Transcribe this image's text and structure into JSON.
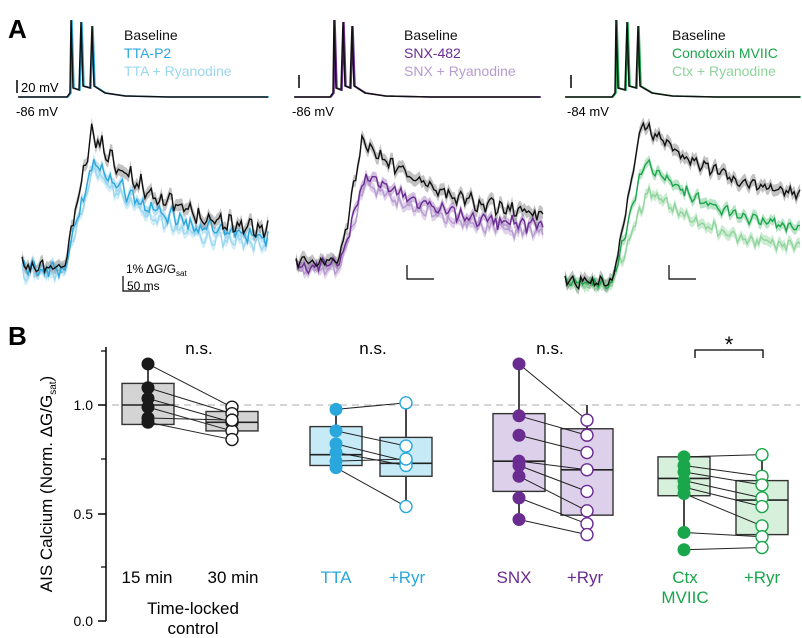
{
  "chart_data": [
    {
      "type": "line",
      "panel": "A",
      "panel_label": "A",
      "legend": [
        {
          "label": "Baseline",
          "color": "#111111"
        },
        {
          "label": "TTA-P2",
          "color": "#2aa7dd"
        },
        {
          "label": "TTA + Ryanodine",
          "color": "#9bd7f0"
        }
      ],
      "vm_label": "-86 mV",
      "voltage_scale_label": "20 mV",
      "scale_y_label_main": "1% ΔG/G",
      "scale_y_label_sub": "sat",
      "scale_x_label": "50 ms"
    },
    {
      "type": "line",
      "panel": "A",
      "legend": [
        {
          "label": "Baseline",
          "color": "#111111"
        },
        {
          "label": "SNX-482",
          "color": "#6a2c91"
        },
        {
          "label": "SNX + Ryanodine",
          "color": "#b79bd0"
        }
      ],
      "vm_label": "-86 mV"
    },
    {
      "type": "line",
      "panel": "A",
      "legend": [
        {
          "label": "Baseline",
          "color": "#111111"
        },
        {
          "label": "Conotoxin MVIIC",
          "color": "#1aa64a"
        },
        {
          "label": "Ctx + Ryanodine",
          "color": "#8fd49c"
        }
      ],
      "vm_label": "-84 mV"
    },
    {
      "type": "box",
      "panel": "B",
      "panel_label": "B",
      "ylabel_main": "AIS Calcium (Norm. ΔG/G",
      "ylabel_sub": "sat",
      "ylabel_end": ")",
      "ylim": [
        0,
        1.3
      ],
      "yticks": [
        "0.0",
        "0.5",
        "1.0"
      ],
      "reference_line": 1.0,
      "groups": [
        {
          "color": "#1a1a1a",
          "fill": "#d4d4d4",
          "labels": [
            "15 min",
            "30 min"
          ],
          "sublabel": [
            "Time-locked",
            "control"
          ],
          "significance": "n.s.",
          "pre": {
            "q1": 0.91,
            "median": 1.0,
            "q3": 1.1,
            "whisker_low": 0.9,
            "whisker_high": 1.2
          },
          "post": {
            "q1": 0.88,
            "median": 0.92,
            "q3": 0.97,
            "whisker_low": 0.83,
            "whisker_high": 1.0
          },
          "pairs": [
            [
              1.19,
              0.99
            ],
            [
              1.08,
              0.96
            ],
            [
              1.03,
              0.92
            ],
            [
              0.99,
              0.88
            ],
            [
              0.94,
              0.93
            ],
            [
              0.92,
              0.84
            ]
          ]
        },
        {
          "color": "#2aa7dd",
          "fill": "#c7eaf7",
          "labels": [
            "TTA",
            "+Ryr"
          ],
          "significance": "n.s.",
          "pre": {
            "q1": 0.72,
            "median": 0.77,
            "q3": 0.9,
            "whisker_low": 0.69,
            "whisker_high": 1.0
          },
          "post": {
            "q1": 0.67,
            "median": 0.73,
            "q3": 0.85,
            "whisker_low": 0.53,
            "whisker_high": 1.0
          },
          "pairs": [
            [
              0.98,
              1.01
            ],
            [
              0.88,
              0.81
            ],
            [
              0.82,
              0.74
            ],
            [
              0.78,
              0.72
            ],
            [
              0.74,
              0.75
            ],
            [
              0.71,
              0.53
            ]
          ]
        },
        {
          "color": "#6a2c91",
          "fill": "#ddd0ea",
          "labels": [
            "SNX",
            "+Ryr"
          ],
          "significance": "n.s.",
          "pre": {
            "q1": 0.6,
            "median": 0.74,
            "q3": 0.96,
            "whisker_low": 0.5,
            "whisker_high": 1.19
          },
          "post": {
            "q1": 0.49,
            "median": 0.7,
            "q3": 0.89,
            "whisker_low": 0.42,
            "whisker_high": 1.0
          },
          "pairs": [
            [
              1.19,
              0.93
            ],
            [
              0.95,
              0.86
            ],
            [
              0.86,
              0.78
            ],
            [
              0.74,
              0.7
            ],
            [
              0.72,
              0.6
            ],
            [
              0.67,
              0.51
            ],
            [
              0.57,
              0.45
            ],
            [
              0.47,
              0.4
            ]
          ]
        },
        {
          "color": "#1aa64a",
          "fill": "#d6f0db",
          "labels": [
            "Ctx",
            "+Ryr"
          ],
          "sublabel_pre": "MVIIC",
          "significance": "*",
          "pre": {
            "q1": 0.58,
            "median": 0.66,
            "q3": 0.76,
            "whisker_low": 0.41,
            "whisker_high": 0.77
          },
          "post": {
            "q1": 0.4,
            "median": 0.56,
            "q3": 0.65,
            "whisker_low": 0.33,
            "whisker_high": 0.75
          },
          "pairs": [
            [
              0.76,
              0.77
            ],
            [
              0.72,
              0.67
            ],
            [
              0.69,
              0.63
            ],
            [
              0.65,
              0.57
            ],
            [
              0.62,
              0.53
            ],
            [
              0.59,
              0.44
            ],
            [
              0.41,
              0.39
            ],
            [
              0.33,
              0.34
            ]
          ]
        }
      ]
    }
  ]
}
